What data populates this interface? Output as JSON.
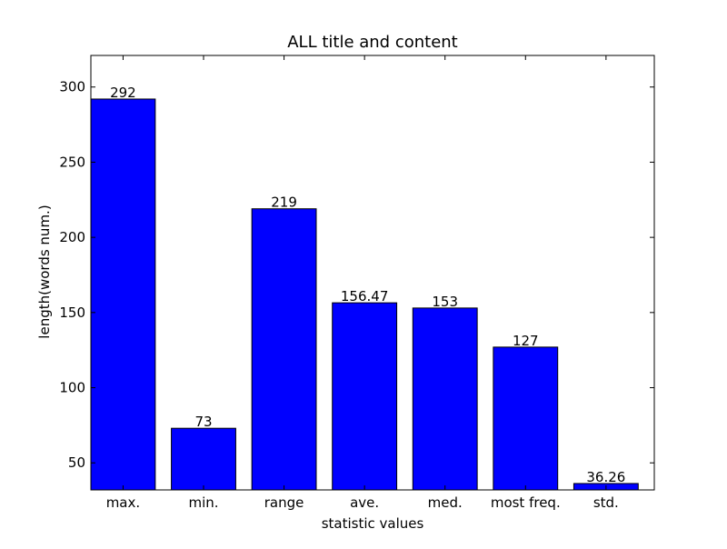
{
  "chart_data": {
    "type": "bar",
    "title": "ALL title and content",
    "xlabel": "statistic values",
    "ylabel": "length(words num.)",
    "categories": [
      "max.",
      "min.",
      "range",
      "ave.",
      "med.",
      "most freq.",
      "std."
    ],
    "values": [
      292,
      73,
      219,
      156.47,
      153,
      127,
      36.26
    ],
    "value_labels": [
      "292",
      "73",
      "219",
      "156.47",
      "153",
      "127",
      "36.26"
    ],
    "ylim": [
      32,
      321
    ],
    "yticks": [
      50,
      100,
      150,
      200,
      250,
      300
    ],
    "grid": false,
    "legend": "none",
    "bar_color": "#0000ff",
    "bar_edge_color": "#000000"
  }
}
